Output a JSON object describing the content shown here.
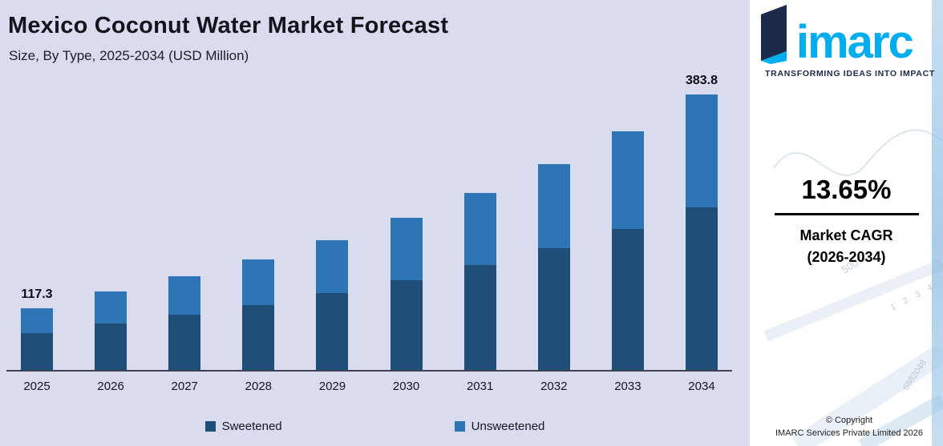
{
  "header": {
    "title": "Mexico Coconut Water Market Forecast",
    "subtitle": "Size, By Type, 2025-2034 (USD Million)"
  },
  "chart_data": {
    "type": "bar",
    "stacked": true,
    "unit": "USD Million",
    "categories": [
      "2025",
      "2026",
      "2027",
      "2028",
      "2029",
      "2030",
      "2031",
      "2032",
      "2033",
      "2034"
    ],
    "series": [
      {
        "name": "Sweetened",
        "color": "#1f4e79",
        "values": [
          69.2,
          81.4,
          92.5,
          105.1,
          119.4,
          135.7,
          154.2,
          175.3,
          199.2,
          226.4
        ]
      },
      {
        "name": "Unsweetened",
        "color": "#2e75b6",
        "values": [
          48.1,
          56.5,
          64.2,
          73.0,
          83.0,
          94.3,
          107.2,
          121.8,
          138.5,
          157.4
        ]
      }
    ],
    "totals": [
      117.3,
      137.9,
      156.7,
      178.1,
      202.4,
      230.0,
      261.4,
      297.1,
      337.7,
      383.8
    ],
    "total_labels": {
      "2025": "117.3",
      "2034": "383.8"
    },
    "ylim": [
      40,
      385
    ],
    "grid": false,
    "legend_position": "bottom"
  },
  "right_panel": {
    "logo_text": "imarc",
    "tagline": "TRANSFORMING IDEAS INTO IMPACT",
    "cagr_value": "13.65%",
    "cagr_label_line1": "Market CAGR",
    "cagr_label_line2": "(2026-2034)",
    "copyright_line1": "© Copyright",
    "copyright_line2": "IMARC Services Private Limited 2026",
    "decorative_numbers": [
      "500.0",
      "1 2 3 4",
      "6882048"
    ]
  },
  "colors": {
    "chart_background": "#d9dcee",
    "sweetened_bar": "#1f4e79",
    "unsweetened_bar": "#2e75b6",
    "logo_blue": "#00aeef",
    "logo_navy": "#1b2a4a",
    "axis_line": "#3f4254"
  }
}
